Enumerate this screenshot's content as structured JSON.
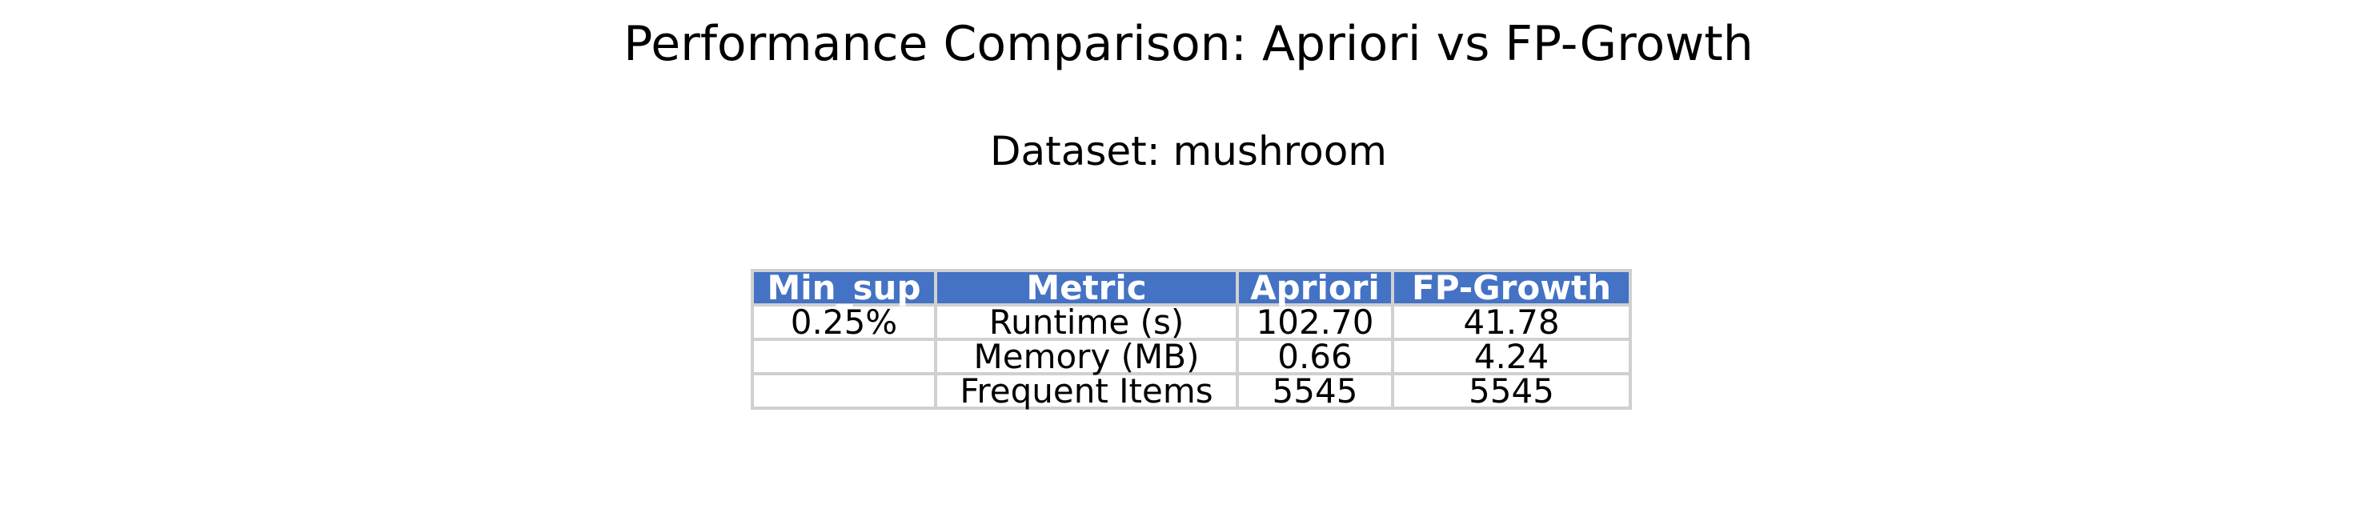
{
  "chart_data": {
    "type": "table",
    "title": "Performance Comparison: Apriori vs FP-Growth",
    "subtitle": "Dataset: mushroom",
    "columns": [
      "Min_sup",
      "Metric",
      "Apriori",
      "FP-Growth"
    ],
    "rows": [
      [
        "0.25%",
        "Runtime (s)",
        "102.70",
        "41.78"
      ],
      [
        "",
        "Memory (MB)",
        "0.66",
        "4.24"
      ],
      [
        "",
        "Frequent Items",
        "5545",
        "5545"
      ]
    ],
    "header_color": "#4472c4",
    "header_text_color": "#ffffff",
    "border_color": "#d0d0d0"
  }
}
